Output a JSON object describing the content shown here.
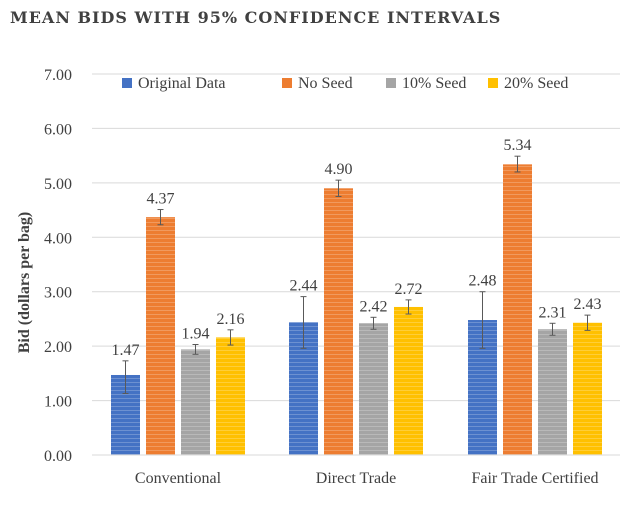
{
  "chart_data": {
    "type": "bar",
    "title": "MEAN BIDS WITH 95% CONFIDENCE INTERVALS",
    "xlabel": "",
    "ylabel": "Bid (dollars per bag)",
    "ylim": [
      0,
      7
    ],
    "yticks": [
      "0.00",
      "1.00",
      "2.00",
      "3.00",
      "4.00",
      "5.00",
      "6.00",
      "7.00"
    ],
    "categories": [
      "Conventional",
      "Direct Trade",
      "Fair Trade Certified"
    ],
    "legend_position": "top",
    "grid": true,
    "series": [
      {
        "name": "Original Data",
        "color": "#4472c4",
        "values": [
          1.47,
          2.44,
          2.48
        ],
        "labels": [
          "1.47",
          "2.44",
          "2.48"
        ],
        "ci_low": [
          1.13,
          1.96,
          1.96
        ],
        "ci_high": [
          1.73,
          2.91,
          3.0
        ]
      },
      {
        "name": "No Seed",
        "color": "#ed7d31",
        "values": [
          4.37,
          4.9,
          5.34
        ],
        "labels": [
          "4.37",
          "4.90",
          "5.34"
        ],
        "ci_low": [
          4.23,
          4.75,
          5.2
        ],
        "ci_high": [
          4.51,
          5.05,
          5.49
        ]
      },
      {
        "name": "10% Seed",
        "color": "#a5a5a5",
        "values": [
          1.94,
          2.42,
          2.31
        ],
        "labels": [
          "1.94",
          "2.42",
          "2.31"
        ],
        "ci_low": [
          1.85,
          2.31,
          2.2
        ],
        "ci_high": [
          2.03,
          2.53,
          2.42
        ]
      },
      {
        "name": "20% Seed",
        "color": "#ffc000",
        "values": [
          2.16,
          2.72,
          2.43
        ],
        "labels": [
          "2.16",
          "2.72",
          "2.43"
        ],
        "ci_low": [
          2.02,
          2.59,
          2.29
        ],
        "ci_high": [
          2.3,
          2.85,
          2.57
        ]
      }
    ]
  }
}
